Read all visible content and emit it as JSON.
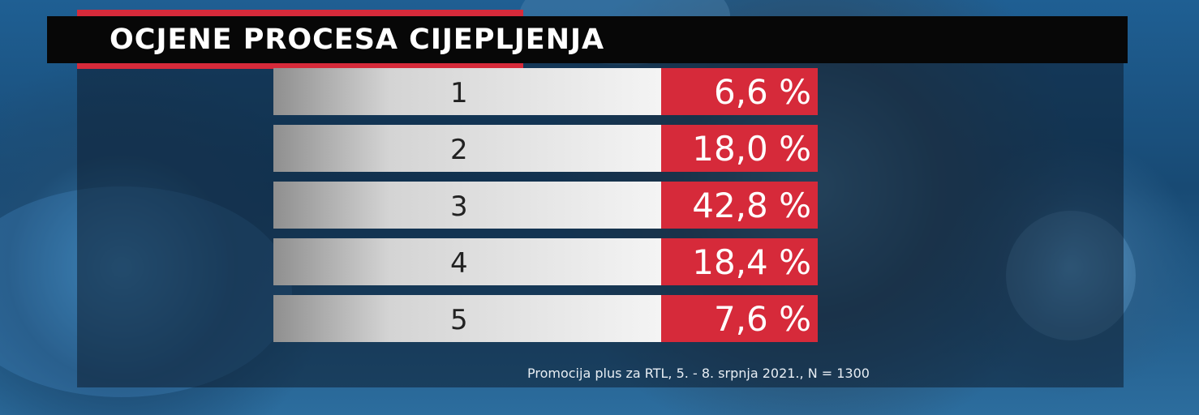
{
  "header": {
    "title": "OCJENE PROCESA CIJEPLJENJA"
  },
  "table": {
    "rows": [
      [
        "1",
        "6,6 %"
      ],
      [
        "2",
        "18,0 %"
      ],
      [
        "3",
        "42,8 %"
      ],
      [
        "4",
        "18,4 %"
      ],
      [
        "5",
        "7,6 %"
      ]
    ]
  },
  "footer": {
    "source": "Promocija plus za RTL, 5. - 8. srpnja 2021., N = 1300"
  }
}
